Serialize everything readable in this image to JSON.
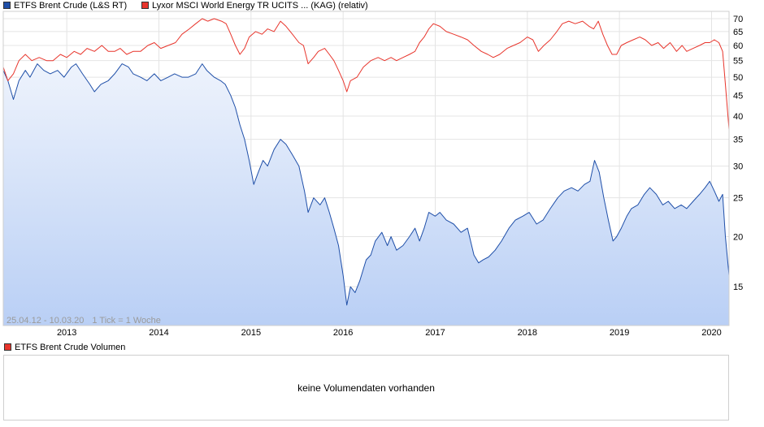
{
  "legend": {
    "series1": {
      "label": "ETFS Brent Crude (L&S RT)",
      "color": "#1f4fa8"
    },
    "series2": {
      "label": "Lyxor MSCI World Energy TR UCITS ... (KAG) (relativ)",
      "color": "#e8352c"
    }
  },
  "chart_info": {
    "range_text": "25.04.12 - 10.03.20",
    "tick_text": "1 Tick = 1 Woche"
  },
  "chart_data": {
    "type": "line",
    "x_labels": [
      "2013",
      "2014",
      "2015",
      "2016",
      "2017",
      "2018",
      "2019",
      "2020"
    ],
    "y_ticks": [
      15,
      20,
      25,
      30,
      35,
      40,
      45,
      50,
      55,
      60,
      65,
      70
    ],
    "yscale": "log",
    "ylim": [
      12,
      73
    ],
    "xlim": [
      2012.31,
      2020.19
    ],
    "grid": true,
    "series": [
      {
        "name": "ETFS Brent Crude (L&S RT)",
        "color": "#1f4fa8",
        "fill": true,
        "points": [
          [
            2012.31,
            52
          ],
          [
            2012.36,
            49
          ],
          [
            2012.42,
            44
          ],
          [
            2012.48,
            49
          ],
          [
            2012.55,
            52
          ],
          [
            2012.6,
            50
          ],
          [
            2012.68,
            54
          ],
          [
            2012.75,
            52
          ],
          [
            2012.82,
            51
          ],
          [
            2012.9,
            52
          ],
          [
            2012.97,
            50
          ],
          [
            2013.05,
            53
          ],
          [
            2013.1,
            54
          ],
          [
            2013.17,
            51
          ],
          [
            2013.25,
            48
          ],
          [
            2013.3,
            46
          ],
          [
            2013.37,
            48
          ],
          [
            2013.45,
            49
          ],
          [
            2013.52,
            51
          ],
          [
            2013.6,
            54
          ],
          [
            2013.67,
            53
          ],
          [
            2013.72,
            51
          ],
          [
            2013.8,
            50
          ],
          [
            2013.87,
            49
          ],
          [
            2013.95,
            51
          ],
          [
            2014.02,
            49
          ],
          [
            2014.1,
            50
          ],
          [
            2014.17,
            51
          ],
          [
            2014.25,
            50
          ],
          [
            2014.32,
            50
          ],
          [
            2014.4,
            51
          ],
          [
            2014.47,
            54
          ],
          [
            2014.52,
            52
          ],
          [
            2014.6,
            50
          ],
          [
            2014.67,
            49
          ],
          [
            2014.72,
            48
          ],
          [
            2014.78,
            45
          ],
          [
            2014.83,
            42
          ],
          [
            2014.88,
            38
          ],
          [
            2014.93,
            35
          ],
          [
            2014.98,
            31
          ],
          [
            2015.03,
            27
          ],
          [
            2015.08,
            29
          ],
          [
            2015.13,
            31
          ],
          [
            2015.18,
            30
          ],
          [
            2015.25,
            33
          ],
          [
            2015.32,
            35
          ],
          [
            2015.38,
            34
          ],
          [
            2015.45,
            32
          ],
          [
            2015.52,
            30
          ],
          [
            2015.58,
            26
          ],
          [
            2015.62,
            23
          ],
          [
            2015.68,
            25
          ],
          [
            2015.75,
            24
          ],
          [
            2015.8,
            25
          ],
          [
            2015.85,
            23
          ],
          [
            2015.9,
            21
          ],
          [
            2015.95,
            19
          ],
          [
            2016.0,
            16
          ],
          [
            2016.04,
            13.5
          ],
          [
            2016.08,
            15
          ],
          [
            2016.13,
            14.5
          ],
          [
            2016.18,
            15.5
          ],
          [
            2016.25,
            17.5
          ],
          [
            2016.3,
            18
          ],
          [
            2016.35,
            19.5
          ],
          [
            2016.42,
            20.5
          ],
          [
            2016.48,
            19
          ],
          [
            2016.52,
            20
          ],
          [
            2016.58,
            18.5
          ],
          [
            2016.65,
            19
          ],
          [
            2016.72,
            20
          ],
          [
            2016.78,
            21
          ],
          [
            2016.83,
            19.5
          ],
          [
            2016.88,
            21
          ],
          [
            2016.93,
            23
          ],
          [
            2017.0,
            22.5
          ],
          [
            2017.05,
            23
          ],
          [
            2017.12,
            22
          ],
          [
            2017.2,
            21.5
          ],
          [
            2017.28,
            20.5
          ],
          [
            2017.35,
            21
          ],
          [
            2017.42,
            18
          ],
          [
            2017.47,
            17.2
          ],
          [
            2017.52,
            17.5
          ],
          [
            2017.58,
            17.8
          ],
          [
            2017.65,
            18.5
          ],
          [
            2017.72,
            19.5
          ],
          [
            2017.8,
            21
          ],
          [
            2017.87,
            22
          ],
          [
            2017.95,
            22.5
          ],
          [
            2018.02,
            23
          ],
          [
            2018.1,
            21.5
          ],
          [
            2018.17,
            22
          ],
          [
            2018.25,
            23.5
          ],
          [
            2018.33,
            25
          ],
          [
            2018.4,
            26
          ],
          [
            2018.48,
            26.5
          ],
          [
            2018.55,
            26
          ],
          [
            2018.62,
            27
          ],
          [
            2018.68,
            27.5
          ],
          [
            2018.73,
            31
          ],
          [
            2018.78,
            29
          ],
          [
            2018.83,
            25
          ],
          [
            2018.88,
            22
          ],
          [
            2018.93,
            19.5
          ],
          [
            2018.97,
            20
          ],
          [
            2019.02,
            21
          ],
          [
            2019.08,
            22.5
          ],
          [
            2019.13,
            23.5
          ],
          [
            2019.2,
            24
          ],
          [
            2019.27,
            25.5
          ],
          [
            2019.33,
            26.5
          ],
          [
            2019.4,
            25.5
          ],
          [
            2019.47,
            24
          ],
          [
            2019.53,
            24.5
          ],
          [
            2019.6,
            23.5
          ],
          [
            2019.67,
            24
          ],
          [
            2019.73,
            23.5
          ],
          [
            2019.8,
            24.5
          ],
          [
            2019.87,
            25.5
          ],
          [
            2019.93,
            26.5
          ],
          [
            2019.98,
            27.5
          ],
          [
            2020.03,
            26
          ],
          [
            2020.08,
            24.5
          ],
          [
            2020.12,
            25.5
          ],
          [
            2020.15,
            20
          ],
          [
            2020.19,
            16
          ]
        ]
      },
      {
        "name": "Lyxor MSCI World Energy TR UCITS ... (KAG) (relativ)",
        "color": "#e8352c",
        "fill": false,
        "points": [
          [
            2012.31,
            53
          ],
          [
            2012.36,
            49
          ],
          [
            2012.42,
            51
          ],
          [
            2012.48,
            55
          ],
          [
            2012.55,
            57
          ],
          [
            2012.62,
            55
          ],
          [
            2012.7,
            56
          ],
          [
            2012.78,
            55
          ],
          [
            2012.85,
            55
          ],
          [
            2012.93,
            57
          ],
          [
            2013.0,
            56
          ],
          [
            2013.08,
            58
          ],
          [
            2013.15,
            57
          ],
          [
            2013.22,
            59
          ],
          [
            2013.3,
            58
          ],
          [
            2013.38,
            60
          ],
          [
            2013.45,
            58
          ],
          [
            2013.52,
            58
          ],
          [
            2013.58,
            59
          ],
          [
            2013.65,
            57
          ],
          [
            2013.72,
            58
          ],
          [
            2013.8,
            58
          ],
          [
            2013.88,
            60
          ],
          [
            2013.95,
            61
          ],
          [
            2014.02,
            59
          ],
          [
            2014.1,
            60
          ],
          [
            2014.18,
            61
          ],
          [
            2014.25,
            64
          ],
          [
            2014.33,
            66
          ],
          [
            2014.4,
            68
          ],
          [
            2014.47,
            70
          ],
          [
            2014.53,
            69
          ],
          [
            2014.6,
            70
          ],
          [
            2014.68,
            69
          ],
          [
            2014.73,
            68
          ],
          [
            2014.78,
            64
          ],
          [
            2014.83,
            60
          ],
          [
            2014.88,
            57
          ],
          [
            2014.93,
            59
          ],
          [
            2014.98,
            63
          ],
          [
            2015.05,
            65
          ],
          [
            2015.12,
            64
          ],
          [
            2015.18,
            66
          ],
          [
            2015.25,
            65
          ],
          [
            2015.32,
            69
          ],
          [
            2015.38,
            67
          ],
          [
            2015.45,
            64
          ],
          [
            2015.52,
            61
          ],
          [
            2015.57,
            60
          ],
          [
            2015.62,
            54
          ],
          [
            2015.68,
            56
          ],
          [
            2015.73,
            58
          ],
          [
            2015.8,
            59
          ],
          [
            2015.85,
            57
          ],
          [
            2015.9,
            55
          ],
          [
            2015.95,
            52
          ],
          [
            2016.0,
            49
          ],
          [
            2016.04,
            46
          ],
          [
            2016.08,
            49
          ],
          [
            2016.15,
            50
          ],
          [
            2016.22,
            53
          ],
          [
            2016.3,
            55
          ],
          [
            2016.38,
            56
          ],
          [
            2016.45,
            55
          ],
          [
            2016.52,
            56
          ],
          [
            2016.58,
            55
          ],
          [
            2016.65,
            56
          ],
          [
            2016.72,
            57
          ],
          [
            2016.78,
            58
          ],
          [
            2016.83,
            61
          ],
          [
            2016.88,
            63
          ],
          [
            2016.93,
            66
          ],
          [
            2016.98,
            68
          ],
          [
            2017.05,
            67
          ],
          [
            2017.12,
            65
          ],
          [
            2017.2,
            64
          ],
          [
            2017.28,
            63
          ],
          [
            2017.35,
            62
          ],
          [
            2017.42,
            60
          ],
          [
            2017.5,
            58
          ],
          [
            2017.57,
            57
          ],
          [
            2017.63,
            56
          ],
          [
            2017.7,
            57
          ],
          [
            2017.78,
            59
          ],
          [
            2017.85,
            60
          ],
          [
            2017.92,
            61
          ],
          [
            2018.0,
            63
          ],
          [
            2018.06,
            62
          ],
          [
            2018.12,
            58
          ],
          [
            2018.18,
            60
          ],
          [
            2018.25,
            62
          ],
          [
            2018.32,
            65
          ],
          [
            2018.38,
            68
          ],
          [
            2018.45,
            69
          ],
          [
            2018.52,
            68
          ],
          [
            2018.6,
            69
          ],
          [
            2018.67,
            67
          ],
          [
            2018.72,
            66
          ],
          [
            2018.77,
            69
          ],
          [
            2018.82,
            64
          ],
          [
            2018.87,
            60
          ],
          [
            2018.92,
            57
          ],
          [
            2018.97,
            57
          ],
          [
            2019.02,
            60
          ],
          [
            2019.08,
            61
          ],
          [
            2019.15,
            62
          ],
          [
            2019.22,
            63
          ],
          [
            2019.28,
            62
          ],
          [
            2019.35,
            60
          ],
          [
            2019.42,
            61
          ],
          [
            2019.48,
            59
          ],
          [
            2019.55,
            61
          ],
          [
            2019.62,
            58
          ],
          [
            2019.68,
            60
          ],
          [
            2019.73,
            58
          ],
          [
            2019.8,
            59
          ],
          [
            2019.87,
            60
          ],
          [
            2019.93,
            61
          ],
          [
            2019.98,
            61
          ],
          [
            2020.03,
            62
          ],
          [
            2020.08,
            61
          ],
          [
            2020.12,
            58
          ],
          [
            2020.15,
            48
          ],
          [
            2020.19,
            37
          ]
        ]
      }
    ]
  },
  "volume": {
    "label": "ETFS Brent Crude Volumen",
    "color": "#e8352c",
    "message": "keine Volumendaten vorhanden"
  }
}
